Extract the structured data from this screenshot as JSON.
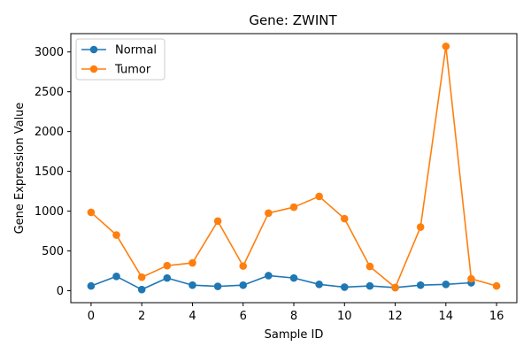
{
  "chart_data": {
    "type": "line",
    "title": "Gene: ZWINT",
    "xlabel": "Sample ID",
    "ylabel": "Gene Expression Value",
    "x": [
      0,
      1,
      2,
      3,
      4,
      5,
      6,
      7,
      8,
      9,
      10,
      11,
      12,
      13,
      14,
      15,
      16
    ],
    "xlim": [
      -0.8,
      16.8
    ],
    "ylim": [
      -150,
      3230
    ],
    "xticks": [
      0,
      2,
      4,
      6,
      8,
      10,
      12,
      14,
      16
    ],
    "yticks": [
      0,
      500,
      1000,
      1500,
      2000,
      2500,
      3000
    ],
    "legend_position": "top-left",
    "grid": false,
    "series": [
      {
        "name": "Normal",
        "color": "#1f77b4",
        "values": [
          60,
          180,
          15,
          160,
          70,
          55,
          70,
          190,
          160,
          80,
          45,
          60,
          40,
          70,
          80,
          100,
          null
        ]
      },
      {
        "name": "Tumor",
        "color": "#ff7f0e",
        "values": [
          985,
          700,
          170,
          315,
          350,
          875,
          310,
          975,
          1050,
          1185,
          905,
          305,
          40,
          800,
          3070,
          150,
          60
        ]
      }
    ]
  }
}
